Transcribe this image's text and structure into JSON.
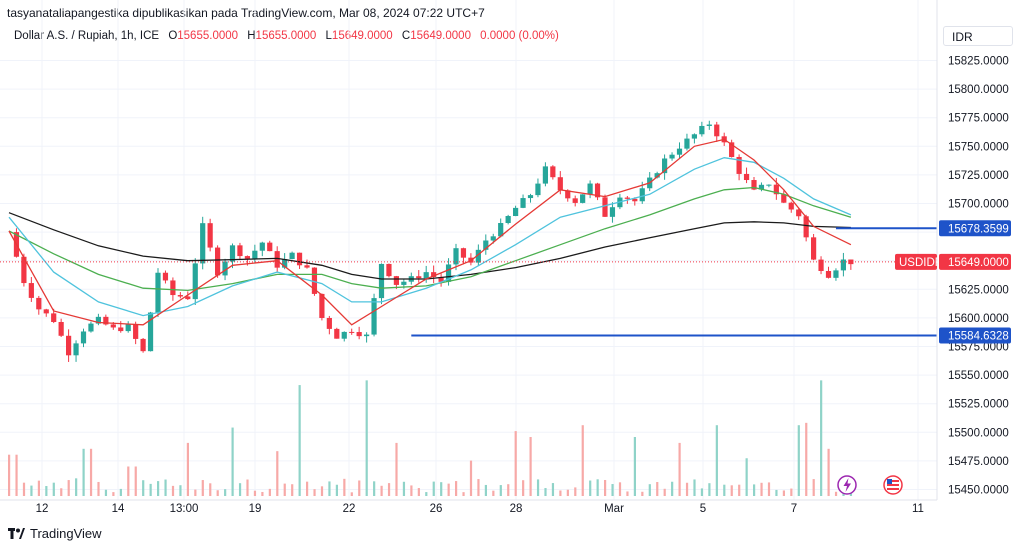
{
  "publish_line": "tasyanataliapangestika dipublikasikan pada TradingView.com, Mar 08, 2024 07:22 UTC+7",
  "legend": {
    "symbol": "Dollar A.S. / Rupiah, 1h, ICE",
    "open_label": "O",
    "open": "15655.0000",
    "high_label": "H",
    "high": "15655.0000",
    "low_label": "L",
    "low": "15649.0000",
    "close_label": "C",
    "close": "15649.0000",
    "change": "0.0000 (0.00%)"
  },
  "currency": "IDR",
  "brand": "TradingView",
  "colors": {
    "up": "#26a69a",
    "down": "#f23645",
    "vol_up": "#8fd3c8",
    "vol_down": "#f7a9a7",
    "ma_fast": "#e53935",
    "ma_mid": "#4fc3dd",
    "ma_slow": "#4caf50",
    "ma_long": "#1b1b1b",
    "hline": "#1e53c9",
    "grid": "#f0f3fa"
  },
  "chart_data": {
    "type": "candlestick",
    "y_axis": {
      "min": 15450,
      "max": 15825,
      "step": 25,
      "ticks": [
        "15825.0000",
        "15800.0000",
        "15775.0000",
        "15750.0000",
        "15725.0000",
        "15700.0000",
        "15675.0000",
        "15650.0000",
        "15625.0000",
        "15600.0000",
        "15575.0000",
        "15550.0000",
        "15525.0000",
        "15500.0000",
        "15475.0000",
        "15450.0000"
      ]
    },
    "x_axis": {
      "ticks": [
        "12",
        "14",
        "13:00",
        "19",
        "22",
        "26",
        "28",
        "Mar",
        "5",
        "7",
        "11"
      ]
    },
    "horizontal_lines": [
      {
        "value": 15678.3599,
        "label": "15678.3599"
      },
      {
        "value": 15584.6328,
        "label": "15584.6328"
      }
    ],
    "last_price": {
      "symbol": "USDIDR",
      "value": 15649.0,
      "label": "15649.0000"
    },
    "price_path": [
      [
        0,
        15675
      ],
      [
        2,
        15632
      ],
      [
        4,
        15608
      ],
      [
        6,
        15598
      ],
      [
        8,
        15570
      ],
      [
        10,
        15590
      ],
      [
        12,
        15598
      ],
      [
        14,
        15590
      ],
      [
        16,
        15592
      ],
      [
        18,
        15570
      ],
      [
        20,
        15640
      ],
      [
        22,
        15620
      ],
      [
        24,
        15618
      ],
      [
        26,
        15680
      ],
      [
        28,
        15640
      ],
      [
        30,
        15662
      ],
      [
        32,
        15652
      ],
      [
        34,
        15666
      ],
      [
        36,
        15646
      ],
      [
        38,
        15655
      ],
      [
        40,
        15642
      ],
      [
        42,
        15600
      ],
      [
        44,
        15584
      ],
      [
        46,
        15590
      ],
      [
        48,
        15584
      ],
      [
        50,
        15648
      ],
      [
        52,
        15630
      ],
      [
        54,
        15634
      ],
      [
        56,
        15640
      ],
      [
        58,
        15632
      ],
      [
        60,
        15658
      ],
      [
        62,
        15648
      ],
      [
        64,
        15668
      ],
      [
        66,
        15680
      ],
      [
        68,
        15696
      ],
      [
        70,
        15708
      ],
      [
        72,
        15730
      ],
      [
        74,
        15712
      ],
      [
        76,
        15702
      ],
      [
        78,
        15716
      ],
      [
        80,
        15690
      ],
      [
        82,
        15708
      ],
      [
        84,
        15702
      ],
      [
        86,
        15720
      ],
      [
        88,
        15738
      ],
      [
        90,
        15750
      ],
      [
        92,
        15760
      ],
      [
        94,
        15770
      ],
      [
        96,
        15752
      ],
      [
        98,
        15728
      ],
      [
        100,
        15710
      ],
      [
        102,
        15718
      ],
      [
        104,
        15700
      ],
      [
        106,
        15690
      ],
      [
        108,
        15650
      ],
      [
        110,
        15638
      ],
      [
        112,
        15650
      ],
      [
        113,
        15649
      ]
    ],
    "ma_fast": [
      [
        0,
        15676
      ],
      [
        6,
        15606
      ],
      [
        12,
        15596
      ],
      [
        18,
        15594
      ],
      [
        24,
        15620
      ],
      [
        30,
        15646
      ],
      [
        36,
        15650
      ],
      [
        42,
        15620
      ],
      [
        46,
        15594
      ],
      [
        50,
        15610
      ],
      [
        56,
        15634
      ],
      [
        62,
        15650
      ],
      [
        68,
        15682
      ],
      [
        74,
        15712
      ],
      [
        80,
        15706
      ],
      [
        86,
        15718
      ],
      [
        92,
        15750
      ],
      [
        96,
        15756
      ],
      [
        100,
        15738
      ],
      [
        104,
        15712
      ],
      [
        108,
        15680
      ],
      [
        113,
        15664
      ]
    ],
    "ma_mid": [
      [
        0,
        15688
      ],
      [
        6,
        15640
      ],
      [
        12,
        15614
      ],
      [
        18,
        15602
      ],
      [
        24,
        15610
      ],
      [
        30,
        15628
      ],
      [
        36,
        15640
      ],
      [
        42,
        15630
      ],
      [
        46,
        15614
      ],
      [
        50,
        15614
      ],
      [
        56,
        15626
      ],
      [
        62,
        15642
      ],
      [
        68,
        15664
      ],
      [
        74,
        15688
      ],
      [
        80,
        15698
      ],
      [
        86,
        15708
      ],
      [
        92,
        15730
      ],
      [
        96,
        15740
      ],
      [
        100,
        15736
      ],
      [
        104,
        15722
      ],
      [
        108,
        15704
      ],
      [
        113,
        15690
      ]
    ],
    "ma_slow": [
      [
        0,
        15676
      ],
      [
        6,
        15656
      ],
      [
        12,
        15638
      ],
      [
        18,
        15626
      ],
      [
        24,
        15624
      ],
      [
        30,
        15630
      ],
      [
        36,
        15638
      ],
      [
        42,
        15638
      ],
      [
        46,
        15630
      ],
      [
        50,
        15626
      ],
      [
        56,
        15628
      ],
      [
        62,
        15636
      ],
      [
        68,
        15650
      ],
      [
        74,
        15664
      ],
      [
        80,
        15678
      ],
      [
        86,
        15690
      ],
      [
        92,
        15704
      ],
      [
        96,
        15712
      ],
      [
        100,
        15714
      ],
      [
        104,
        15708
      ],
      [
        108,
        15698
      ],
      [
        113,
        15688
      ]
    ],
    "ma_long": [
      [
        0,
        15692
      ],
      [
        6,
        15677
      ],
      [
        12,
        15663
      ],
      [
        18,
        15654
      ],
      [
        24,
        15650
      ],
      [
        30,
        15651
      ],
      [
        36,
        15652
      ],
      [
        42,
        15646
      ],
      [
        46,
        15638
      ],
      [
        50,
        15634
      ],
      [
        56,
        15634
      ],
      [
        62,
        15638
      ],
      [
        68,
        15644
      ],
      [
        74,
        15652
      ],
      [
        80,
        15662
      ],
      [
        86,
        15670
      ],
      [
        92,
        15678
      ],
      [
        96,
        15683
      ],
      [
        100,
        15684
      ],
      [
        104,
        15683
      ],
      [
        108,
        15680
      ],
      [
        113,
        15679
      ]
    ],
    "volume_peaks": [
      [
        0.5,
        0.35
      ],
      [
        10.5,
        0.4
      ],
      [
        16.5,
        0.25
      ],
      [
        24,
        0.45
      ],
      [
        30,
        0.58
      ],
      [
        36,
        0.38
      ],
      [
        39,
        0.94
      ],
      [
        48,
        0.98
      ],
      [
        52,
        0.45
      ],
      [
        62,
        0.3
      ],
      [
        68,
        0.55
      ],
      [
        70,
        0.5
      ],
      [
        77,
        0.6
      ],
      [
        84,
        0.5
      ],
      [
        90,
        0.45
      ],
      [
        95,
        0.6
      ],
      [
        99,
        0.32
      ],
      [
        106,
        0.6
      ],
      [
        107,
        0.62
      ],
      [
        109,
        0.98
      ],
      [
        110,
        0.4
      ]
    ]
  }
}
